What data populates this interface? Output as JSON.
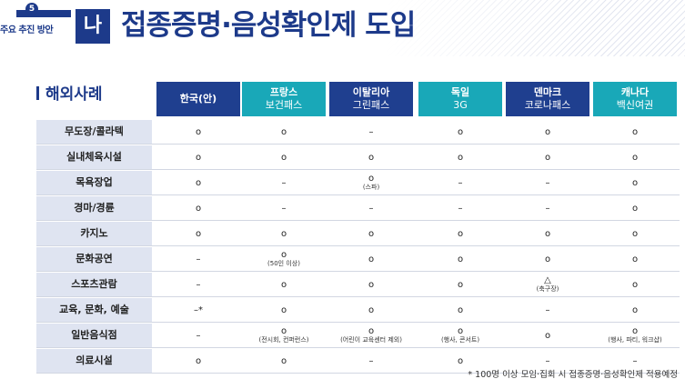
{
  "header": {
    "badge_number": "5",
    "badge_sub": "주요 추진 방안",
    "section_char": "나",
    "title": "접종증명·음성확인제 도입"
  },
  "table": {
    "title": "해외사례",
    "columns": [
      {
        "name": "한국(안)",
        "sub": "",
        "color": "#1f3f8f"
      },
      {
        "name": "프랑스",
        "sub": "보건패스",
        "color": "#19a8b8"
      },
      {
        "name": "이탈리아",
        "sub": "그린패스",
        "color": "#1f3f8f"
      },
      {
        "name": "독일",
        "sub": "3G",
        "color": "#19a8b8"
      },
      {
        "name": "덴마크",
        "sub": "코로나패스",
        "color": "#1f3f8f"
      },
      {
        "name": "캐나다",
        "sub": "백신여권",
        "color": "#19a8b8"
      }
    ],
    "rows": [
      {
        "label": "무도장/콜라텍",
        "cells": [
          {
            "v": "o"
          },
          {
            "v": "o"
          },
          {
            "v": "–"
          },
          {
            "v": "o"
          },
          {
            "v": "o"
          },
          {
            "v": "o"
          }
        ]
      },
      {
        "label": "실내체육시설",
        "cells": [
          {
            "v": "o"
          },
          {
            "v": "o"
          },
          {
            "v": "o"
          },
          {
            "v": "o"
          },
          {
            "v": "o"
          },
          {
            "v": "o"
          }
        ]
      },
      {
        "label": "목욕장업",
        "cells": [
          {
            "v": "o"
          },
          {
            "v": "–"
          },
          {
            "v": "o",
            "note": "(스파)"
          },
          {
            "v": "–"
          },
          {
            "v": "–"
          },
          {
            "v": "o"
          }
        ]
      },
      {
        "label": "경마/경륜",
        "cells": [
          {
            "v": "o"
          },
          {
            "v": "–"
          },
          {
            "v": "–"
          },
          {
            "v": "–"
          },
          {
            "v": "–"
          },
          {
            "v": "o"
          }
        ]
      },
      {
        "label": "카지노",
        "cells": [
          {
            "v": "o"
          },
          {
            "v": "o"
          },
          {
            "v": "o"
          },
          {
            "v": "o"
          },
          {
            "v": "o"
          },
          {
            "v": "o"
          }
        ]
      },
      {
        "label": "문화공연",
        "cells": [
          {
            "v": "–"
          },
          {
            "v": "o",
            "note": "(50인 이상)"
          },
          {
            "v": "o"
          },
          {
            "v": "o"
          },
          {
            "v": "o"
          },
          {
            "v": "o"
          }
        ]
      },
      {
        "label": "스포츠관람",
        "cells": [
          {
            "v": "–"
          },
          {
            "v": "o"
          },
          {
            "v": "o"
          },
          {
            "v": "o"
          },
          {
            "v": "△",
            "note": "(축구장)"
          },
          {
            "v": "o"
          }
        ]
      },
      {
        "label": "교육, 문화, 예술",
        "cells": [
          {
            "v": "–*"
          },
          {
            "v": "o"
          },
          {
            "v": "o"
          },
          {
            "v": "o"
          },
          {
            "v": "–"
          },
          {
            "v": "o"
          }
        ]
      },
      {
        "label": "일반음식점",
        "cells": [
          {
            "v": "–"
          },
          {
            "v": "o",
            "note": "(전시회, 컨퍼런스)"
          },
          {
            "v": "o",
            "note": "(어린이 교육센터 제외)"
          },
          {
            "v": "o",
            "note": "(행사, 콘서트)"
          },
          {
            "v": "o"
          },
          {
            "v": "o",
            "note": "(행사, 파티, 워크샵)"
          }
        ]
      },
      {
        "label": "의료시설",
        "cells": [
          {
            "v": "o"
          },
          {
            "v": "o"
          },
          {
            "v": "–"
          },
          {
            "v": "o"
          },
          {
            "v": "–"
          },
          {
            "v": "–"
          }
        ]
      }
    ]
  },
  "footnote": "* 100명 이상 모임·집회 시 접종증명·음성확인제 적용예정"
}
